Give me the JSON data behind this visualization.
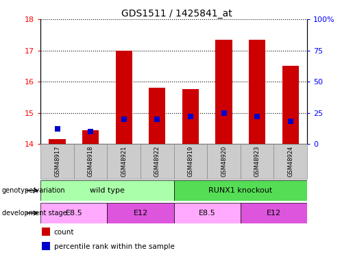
{
  "title": "GDS1511 / 1425841_at",
  "samples": [
    "GSM48917",
    "GSM48918",
    "GSM48921",
    "GSM48922",
    "GSM48919",
    "GSM48920",
    "GSM48923",
    "GSM48924"
  ],
  "count_values": [
    14.15,
    14.45,
    17.0,
    15.8,
    15.75,
    17.35,
    17.35,
    16.5
  ],
  "percentile_values": [
    12,
    10,
    20,
    20,
    22,
    25,
    22,
    18
  ],
  "ylim_left": [
    14,
    18
  ],
  "ylim_right": [
    0,
    100
  ],
  "yticks_left": [
    14,
    15,
    16,
    17,
    18
  ],
  "yticks_right": [
    0,
    25,
    50,
    75,
    100
  ],
  "ytick_labels_right": [
    "0",
    "25",
    "50",
    "75",
    "100%"
  ],
  "bar_color": "#cc0000",
  "dot_color": "#0000cc",
  "genotype_row": {
    "label": "genotype/variation",
    "groups": [
      {
        "name": "wild type",
        "start": 0,
        "end": 4,
        "color": "#aaffaa"
      },
      {
        "name": "RUNX1 knockout",
        "start": 4,
        "end": 8,
        "color": "#55dd55"
      }
    ]
  },
  "development_row": {
    "label": "development stage",
    "groups": [
      {
        "name": "E8.5",
        "start": 0,
        "end": 2,
        "color": "#ffaaff"
      },
      {
        "name": "E12",
        "start": 2,
        "end": 4,
        "color": "#dd55dd"
      },
      {
        "name": "E8.5",
        "start": 4,
        "end": 6,
        "color": "#ffaaff"
      },
      {
        "name": "E12",
        "start": 6,
        "end": 8,
        "color": "#dd55dd"
      }
    ]
  },
  "legend_items": [
    {
      "label": "count",
      "color": "#cc0000"
    },
    {
      "label": "percentile rank within the sample",
      "color": "#0000cc"
    }
  ],
  "bar_width": 0.5,
  "dot_size": 40,
  "sample_box_color": "#cccccc",
  "sample_box_edge": "#888888"
}
